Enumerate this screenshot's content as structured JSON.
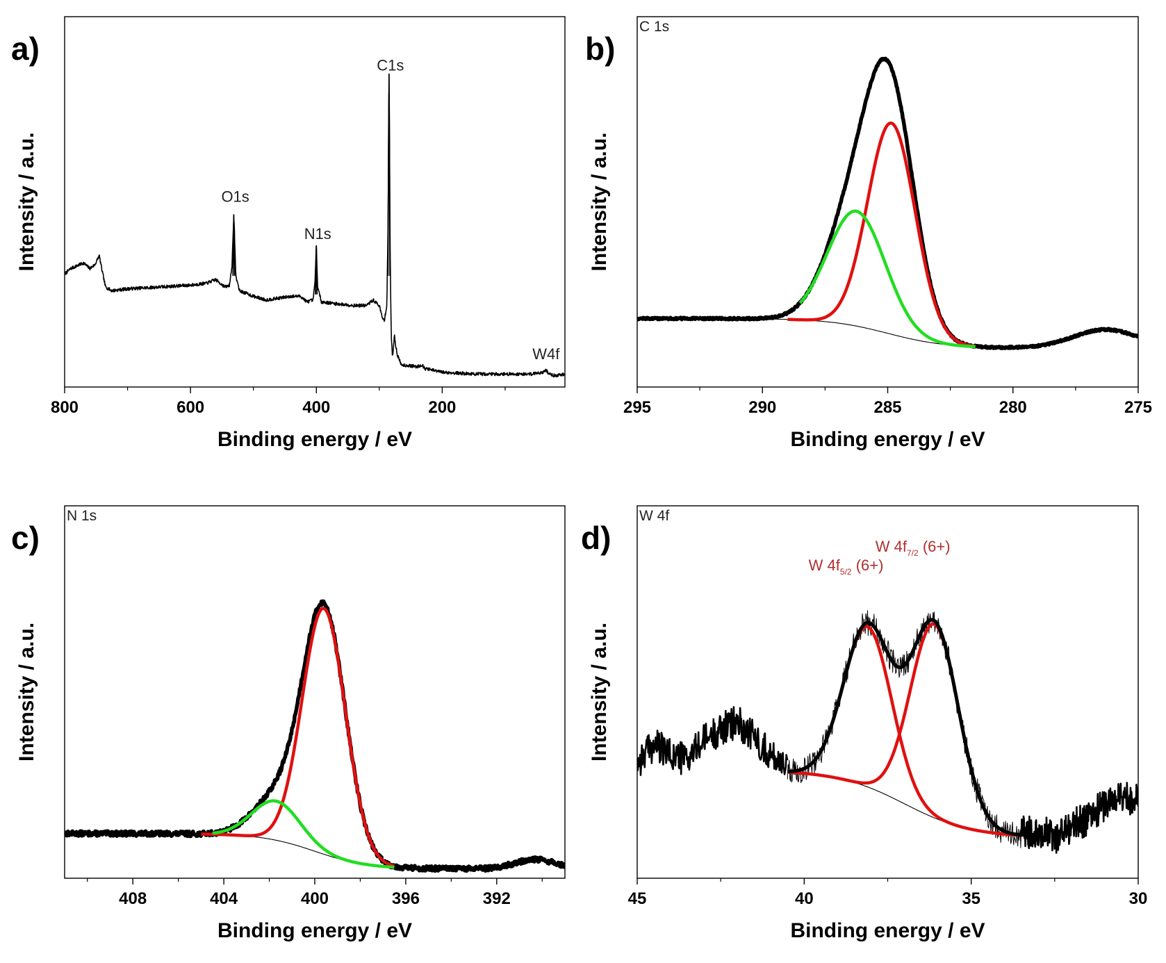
{
  "chart_data": [
    {
      "type": "line",
      "panel": "a)",
      "xlabel": "Binding energy / eV",
      "ylabel": "Intensity / a.u.",
      "xlim": [
        800,
        5
      ],
      "ylim": [
        0,
        100
      ],
      "x_reversed": true,
      "xticks": [
        800,
        600,
        400,
        200
      ],
      "xticklabels": [
        "800",
        "600",
        "400",
        "200"
      ],
      "minor_xticks": [
        700,
        500,
        300,
        100
      ],
      "annotations": [
        {
          "text": "C1s",
          "x": 284.5,
          "y": 85.5
        },
        {
          "text": "O1s",
          "x": 531,
          "y": 50
        },
        {
          "text": "N1s",
          "x": 400,
          "y": 40
        },
        {
          "text": "W4f",
          "x": 35,
          "y": 7.5
        }
      ],
      "series": [
        {
          "color": "#000000",
          "points": [
            [
              800,
              30.5
            ],
            [
              790,
              32
            ],
            [
              770,
              33.5
            ],
            [
              760,
              32
            ],
            [
              752,
              33
            ],
            [
              745,
              35.5
            ],
            [
              740,
              31
            ],
            [
              735,
              27
            ],
            [
              725,
              26
            ],
            [
              700,
              26.5
            ],
            [
              650,
              27
            ],
            [
              600,
              27.5
            ],
            [
              575,
              28
            ],
            [
              560,
              29
            ],
            [
              545,
              27
            ],
            [
              538,
              27.5
            ],
            [
              534,
              33
            ],
            [
              531,
              46.5
            ],
            [
              528,
              30
            ],
            [
              522,
              26
            ],
            [
              500,
              24.5
            ],
            [
              480,
              23.5
            ],
            [
              460,
              24
            ],
            [
              440,
              24.5
            ],
            [
              425,
              24.5
            ],
            [
              415,
              23
            ],
            [
              405,
              23.5
            ],
            [
              402,
              29
            ],
            [
              400,
              38
            ],
            [
              398,
              27
            ],
            [
              392,
              23
            ],
            [
              370,
              22.5
            ],
            [
              340,
              22
            ],
            [
              320,
              22
            ],
            [
              310,
              23.5
            ],
            [
              300,
              22
            ],
            [
              295,
              18.5
            ],
            [
              292,
              18
            ],
            [
              288,
              22
            ],
            [
              286,
              45
            ],
            [
              285.2,
              70
            ],
            [
              284.5,
              84
            ],
            [
              283.8,
              70
            ],
            [
              283,
              40
            ],
            [
              281,
              14
            ],
            [
              279,
              8
            ],
            [
              276,
              14
            ],
            [
              272,
              9
            ],
            [
              265,
              6
            ],
            [
              240,
              5.5
            ],
            [
              232,
              6
            ],
            [
              228,
              5
            ],
            [
              200,
              4
            ],
            [
              150,
              3.5
            ],
            [
              100,
              3.5
            ],
            [
              60,
              3.5
            ],
            [
              40,
              4
            ],
            [
              35,
              4.5
            ],
            [
              30,
              3.5
            ],
            [
              20,
              3
            ],
            [
              5,
              3.5
            ]
          ]
        }
      ]
    },
    {
      "type": "line",
      "panel": "b)",
      "corner_label": "C 1s",
      "xlabel": "Binding energy / eV",
      "ylabel": "Intensity / a.u.",
      "xlim": [
        295,
        275
      ],
      "ylim": [
        0,
        100
      ],
      "x_reversed": true,
      "xticks": [
        295,
        290,
        285,
        280,
        275
      ],
      "xticklabels": [
        "295",
        "290",
        "285",
        "280",
        "275"
      ],
      "minor_xticks": [
        292.5,
        287.5,
        282.5,
        277.5
      ],
      "baseline_segments": [
        {
          "x_from": 295,
          "x_to": 288.5,
          "y": 18.5
        },
        {
          "x_from": 281.5,
          "x_to": 275,
          "y": 10.5
        }
      ],
      "components": [
        {
          "color": "#e01010",
          "center": 284.85,
          "height": 57,
          "sigma": 0.95
        },
        {
          "color": "#22dd22",
          "center": 286.25,
          "height": 31,
          "sigma": 1.15
        }
      ],
      "raw_extra_peak": {
        "center": 276.3,
        "height": 5,
        "sigma": 1.3
      },
      "series": [
        {
          "color": "#000000",
          "role": "measured",
          "x_from": 295,
          "x_to": 275
        },
        {
          "color": "#000000",
          "role": "background",
          "x_from": 295,
          "x_to": 281.5
        },
        {
          "color": "#e01010",
          "role": "component",
          "x_from": 289,
          "x_to": 281.5
        },
        {
          "color": "#22dd22",
          "role": "component",
          "x_from": 288.5,
          "x_to": 281.5
        }
      ]
    },
    {
      "type": "line",
      "panel": "c)",
      "corner_label": "N 1s",
      "xlabel": "Binding energy / eV",
      "ylabel": "Intensity / a.u.",
      "xlim": [
        411,
        389
      ],
      "ylim": [
        0,
        100
      ],
      "x_reversed": true,
      "xticks": [
        408,
        404,
        400,
        396,
        392
      ],
      "xticklabels": [
        "408",
        "404",
        "400",
        "396",
        "392"
      ],
      "minor_xticks": [
        410,
        406,
        402,
        398,
        394,
        390
      ],
      "baseline_segments": [
        {
          "x_from": 411,
          "x_to": 403.5,
          "y": 12
        },
        {
          "x_from": 396.5,
          "x_to": 389,
          "y": 2.5
        }
      ],
      "components": [
        {
          "color": "#e01010",
          "center": 399.6,
          "height": 66,
          "sigma": 0.95
        },
        {
          "color": "#22dd22",
          "center": 401.7,
          "height": 10.5,
          "sigma": 1.05
        }
      ],
      "raw_extra_peak": {
        "center": 390.3,
        "height": 2.5,
        "sigma": 0.9
      },
      "series": [
        {
          "color": "#000000",
          "role": "measured",
          "x_from": 411,
          "x_to": 389
        },
        {
          "color": "#000000",
          "role": "background",
          "x_from": 405.5,
          "x_to": 396.5
        },
        {
          "color": "#e01010",
          "role": "component",
          "x_from": 405,
          "x_to": 396.5
        },
        {
          "color": "#22dd22",
          "role": "component",
          "x_from": 404.5,
          "x_to": 396.5
        }
      ]
    },
    {
      "type": "line",
      "panel": "d)",
      "corner_label": "W 4f",
      "xlabel": "Binding energy / eV",
      "ylabel": "Intensity / a.u.",
      "xlim": [
        45,
        30
      ],
      "ylim": [
        0,
        100
      ],
      "x_reversed": true,
      "xticks": [
        45,
        40,
        35,
        30
      ],
      "xticklabels": [
        "45",
        "40",
        "35",
        "30"
      ],
      "minor_xticks": [
        42.5,
        37.5,
        32.5
      ],
      "fit_range": [
        40.5,
        33.5
      ],
      "fit_baseline": [
        {
          "x": 40.5,
          "y": 29
        },
        {
          "x": 33.5,
          "y": 11
        }
      ],
      "components": [
        {
          "color": "#e01010",
          "center": 38.1,
          "height": 43,
          "sigma": 0.72
        },
        {
          "color": "#e01010",
          "center": 36.1,
          "height": 52,
          "sigma": 0.72
        }
      ],
      "peak_labels": [
        {
          "text": "W 4f",
          "sub": "5/2",
          "suffix": " (6+)",
          "x": 38.1
        },
        {
          "text": "W 4f",
          "sub": "7/2",
          "suffix": " (6+)",
          "x": 36.1
        }
      ],
      "noise_segments": [
        {
          "x_from": 45,
          "x_to": 40.5,
          "points": [
            [
              45,
              31
            ],
            [
              44.5,
              36
            ],
            [
              44,
              33
            ],
            [
              43.5,
              32
            ],
            [
              43,
              37
            ],
            [
              42.5,
              40
            ],
            [
              42,
              42
            ],
            [
              41.5,
              38
            ],
            [
              41,
              33
            ],
            [
              40.5,
              31
            ]
          ]
        },
        {
          "x_from": 33.5,
          "x_to": 30,
          "points": [
            [
              33.5,
              12
            ],
            [
              33,
              13
            ],
            [
              32.5,
              11
            ],
            [
              32,
              14
            ],
            [
              31.5,
              16
            ],
            [
              31,
              20
            ],
            [
              30.5,
              22
            ],
            [
              30,
              21
            ]
          ]
        }
      ],
      "series": [
        {
          "color": "#000000",
          "role": "measured",
          "x_from": 45,
          "x_to": 30
        },
        {
          "color": "#000000",
          "role": "background",
          "x_from": 40.5,
          "x_to": 33.5
        },
        {
          "color": "#e01010",
          "role": "component",
          "x_from": 40.5,
          "x_to": 33.5
        },
        {
          "color": "#e01010",
          "role": "component",
          "x_from": 40.5,
          "x_to": 33.5
        }
      ]
    }
  ]
}
